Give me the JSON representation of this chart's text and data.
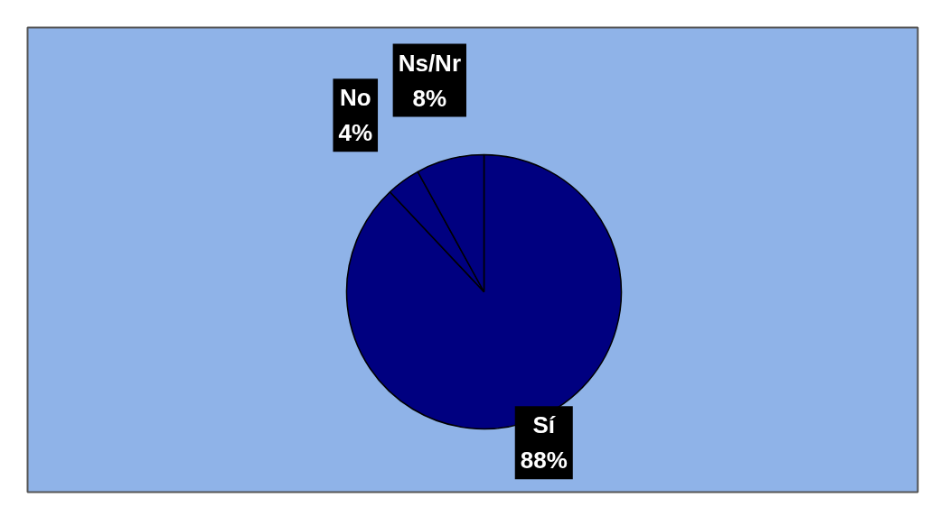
{
  "chart_data": {
    "type": "pie",
    "categories": [
      "Sí",
      "No",
      "Ns/Nr"
    ],
    "values": [
      88,
      4,
      8
    ],
    "value_labels": [
      "88%",
      "4%",
      "8%"
    ],
    "colors": [
      "#000080",
      "#000080",
      "#000080"
    ]
  }
}
